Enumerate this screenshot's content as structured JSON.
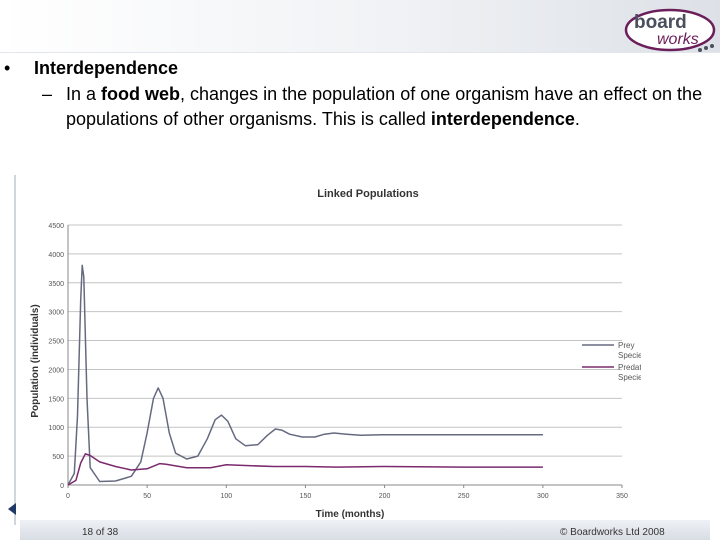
{
  "slide": {
    "heading": "Interdependence",
    "sub_point": {
      "t1": "In a ",
      "t2": "food web",
      "t3": ", changes in the population of one organism have an effect on the populations of other organisms. This is called ",
      "t4": "interdependence",
      "t5": "."
    }
  },
  "logo": {
    "line1": "board",
    "line2": "works"
  },
  "footer": {
    "page": "18 of 38",
    "copyright": "© Boardworks Ltd 2008"
  },
  "colors": {
    "prey": "#666a80",
    "predator": "#7a2a6e",
    "grid": "#c4c4c4",
    "logo_accent": "#6b1e5a"
  },
  "chart_data": {
    "type": "line",
    "title": "Linked Populations",
    "xlabel": "Time (months)",
    "ylabel": "Population (individuals)",
    "xlim": [
      0,
      350
    ],
    "ylim": [
      0,
      4500
    ],
    "x_ticks": [
      0,
      50,
      100,
      150,
      200,
      250,
      300,
      350
    ],
    "y_ticks": [
      0,
      500,
      1000,
      1500,
      2000,
      2500,
      3000,
      3500,
      4000,
      4500
    ],
    "grid": true,
    "legend": "right",
    "series": [
      {
        "name": "Prey Species",
        "points": [
          [
            0,
            0
          ],
          [
            4,
            200
          ],
          [
            6,
            1200
          ],
          [
            8,
            3200
          ],
          [
            9,
            3800
          ],
          [
            10,
            3600
          ],
          [
            12,
            1500
          ],
          [
            14,
            300
          ],
          [
            20,
            60
          ],
          [
            30,
            70
          ],
          [
            40,
            150
          ],
          [
            46,
            400
          ],
          [
            50,
            900
          ],
          [
            54,
            1500
          ],
          [
            57,
            1680
          ],
          [
            60,
            1500
          ],
          [
            64,
            900
          ],
          [
            68,
            550
          ],
          [
            75,
            450
          ],
          [
            82,
            500
          ],
          [
            88,
            800
          ],
          [
            93,
            1130
          ],
          [
            97,
            1210
          ],
          [
            101,
            1100
          ],
          [
            106,
            800
          ],
          [
            112,
            680
          ],
          [
            120,
            700
          ],
          [
            126,
            860
          ],
          [
            131,
            970
          ],
          [
            135,
            950
          ],
          [
            140,
            880
          ],
          [
            148,
            830
          ],
          [
            156,
            830
          ],
          [
            162,
            880
          ],
          [
            168,
            900
          ],
          [
            176,
            880
          ],
          [
            185,
            860
          ],
          [
            200,
            870
          ],
          [
            220,
            870
          ],
          [
            260,
            870
          ],
          [
            300,
            870
          ]
        ]
      },
      {
        "name": "Predator Species",
        "points": [
          [
            0,
            0
          ],
          [
            5,
            80
          ],
          [
            8,
            380
          ],
          [
            11,
            540
          ],
          [
            14,
            510
          ],
          [
            20,
            400
          ],
          [
            30,
            320
          ],
          [
            40,
            260
          ],
          [
            50,
            280
          ],
          [
            58,
            370
          ],
          [
            62,
            360
          ],
          [
            75,
            300
          ],
          [
            90,
            300
          ],
          [
            100,
            350
          ],
          [
            110,
            340
          ],
          [
            130,
            320
          ],
          [
            150,
            320
          ],
          [
            170,
            310
          ],
          [
            200,
            320
          ],
          [
            250,
            310
          ],
          [
            300,
            310
          ]
        ]
      }
    ]
  }
}
